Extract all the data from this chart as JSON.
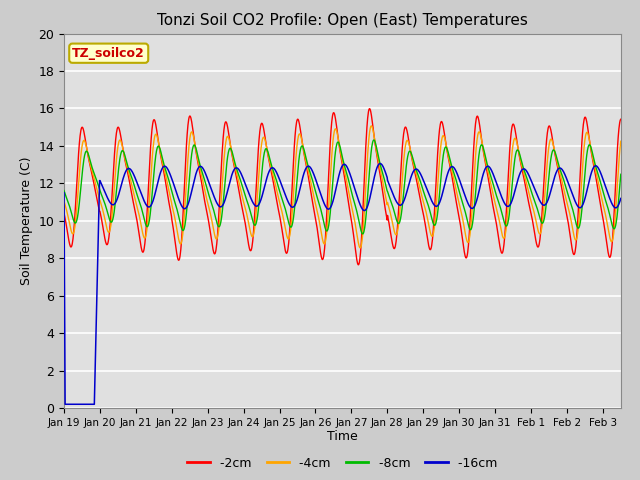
{
  "title": "Tonzi Soil CO2 Profile: Open (East) Temperatures",
  "xlabel": "Time",
  "ylabel": "Soil Temperature (C)",
  "ylim": [
    0,
    20
  ],
  "colors": {
    "-2cm": "#ff0000",
    "-4cm": "#ffa500",
    "-8cm": "#00bb00",
    "-16cm": "#0000cc"
  },
  "legend_label": "TZ_soilco2",
  "legend_bg": "#ffffcc",
  "legend_border": "#bbaa00",
  "xtick_labels": [
    "Jan 19",
    "Jan 20",
    "Jan 21",
    "Jan 22",
    "Jan 23",
    "Jan 24",
    "Jan 25",
    "Jan 26",
    "Jan 27",
    "Jan 28",
    "Jan 29",
    "Jan 30",
    "Jan 31",
    "Feb 1",
    "Feb 2",
    "Feb 3"
  ],
  "ytick_labels": [
    "0",
    "2",
    "4",
    "6",
    "8",
    "10",
    "12",
    "14",
    "16",
    "18",
    "20"
  ],
  "ytick_vals": [
    0,
    2,
    4,
    6,
    8,
    10,
    12,
    14,
    16,
    18,
    20
  ]
}
